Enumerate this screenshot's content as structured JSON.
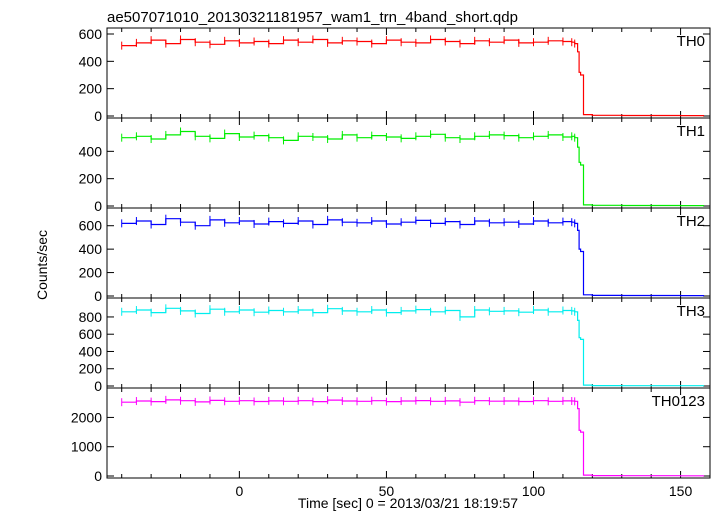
{
  "chart_data": {
    "type": "line",
    "title": "ae507071010_20130321181957_wam1_trn_4band_short.qdp",
    "xlabel": "Time [sec] 0 = 2013/03/21 18:19:57",
    "ylabel": "Counts/sec",
    "xlim": [
      -45,
      160
    ],
    "xticks": [
      0,
      50,
      100,
      150
    ],
    "panels": [
      {
        "name": "TH0",
        "color": "#ff0000",
        "ylim": [
          0,
          600
        ],
        "yticks": [
          0,
          200,
          400,
          600
        ],
        "x": [
          -40,
          -35,
          -30,
          -25,
          -20,
          -15,
          -10,
          -5,
          0,
          5,
          10,
          15,
          20,
          25,
          30,
          35,
          40,
          45,
          50,
          55,
          60,
          65,
          70,
          75,
          80,
          85,
          90,
          95,
          100,
          105,
          110,
          113,
          114,
          115,
          115.5,
          116,
          117,
          120,
          130,
          140,
          150,
          158
        ],
        "values": [
          515,
          535,
          555,
          530,
          560,
          540,
          525,
          550,
          535,
          545,
          530,
          555,
          540,
          560,
          535,
          550,
          545,
          530,
          555,
          540,
          535,
          560,
          545,
          530,
          550,
          540,
          555,
          535,
          540,
          550,
          545,
          540,
          530,
          470,
          320,
          300,
          10,
          5,
          4,
          4,
          3,
          3
        ]
      },
      {
        "name": "TH1",
        "color": "#00ee00",
        "ylim": [
          0,
          600
        ],
        "yticks": [
          0,
          200,
          400
        ],
        "x": [
          -40,
          -35,
          -30,
          -25,
          -20,
          -15,
          -10,
          -5,
          0,
          5,
          10,
          15,
          20,
          25,
          30,
          35,
          40,
          45,
          50,
          55,
          60,
          65,
          70,
          75,
          80,
          85,
          90,
          95,
          100,
          105,
          110,
          113,
          114,
          115,
          115.5,
          116,
          117,
          120,
          130,
          140,
          150,
          158
        ],
        "values": [
          500,
          510,
          490,
          520,
          545,
          510,
          495,
          530,
          505,
          515,
          500,
          480,
          510,
          505,
          490,
          520,
          500,
          515,
          505,
          495,
          510,
          525,
          500,
          490,
          510,
          520,
          515,
          500,
          510,
          520,
          505,
          510,
          500,
          430,
          320,
          300,
          8,
          5,
          4,
          4,
          3,
          3
        ]
      },
      {
        "name": "TH2",
        "color": "#0000ff",
        "ylim": [
          0,
          700
        ],
        "yticks": [
          0,
          200,
          400,
          600
        ],
        "x": [
          -40,
          -35,
          -30,
          -25,
          -20,
          -15,
          -10,
          -5,
          0,
          5,
          10,
          15,
          20,
          25,
          30,
          35,
          40,
          45,
          50,
          55,
          60,
          65,
          70,
          75,
          80,
          85,
          90,
          95,
          100,
          105,
          110,
          113,
          114,
          115,
          115.5,
          116,
          117,
          120,
          130,
          140,
          150,
          158
        ],
        "values": [
          620,
          640,
          610,
          660,
          630,
          600,
          650,
          625,
          640,
          615,
          635,
          620,
          640,
          610,
          650,
          630,
          625,
          640,
          615,
          630,
          645,
          620,
          635,
          610,
          640,
          625,
          630,
          615,
          640,
          625,
          635,
          630,
          620,
          560,
          400,
          380,
          10,
          5,
          4,
          4,
          3,
          3
        ]
      },
      {
        "name": "TH3",
        "color": "#00eeee",
        "ylim": [
          0,
          950
        ],
        "yticks": [
          0,
          200,
          400,
          600,
          800
        ],
        "x": [
          -40,
          -35,
          -30,
          -25,
          -20,
          -15,
          -10,
          -5,
          0,
          5,
          10,
          15,
          20,
          25,
          30,
          35,
          40,
          45,
          50,
          55,
          60,
          65,
          70,
          75,
          80,
          85,
          90,
          95,
          100,
          105,
          110,
          113,
          114,
          115,
          115.5,
          116,
          117,
          120,
          130,
          140,
          150,
          158
        ],
        "values": [
          860,
          880,
          850,
          900,
          870,
          840,
          890,
          860,
          880,
          855,
          875,
          860,
          880,
          850,
          895,
          870,
          860,
          880,
          850,
          870,
          885,
          860,
          875,
          800,
          880,
          865,
          870,
          855,
          880,
          860,
          875,
          870,
          860,
          760,
          560,
          540,
          10,
          5,
          4,
          4,
          3,
          3
        ]
      },
      {
        "name": "TH0123",
        "color": "#ff00ff",
        "ylim": [
          0,
          2800
        ],
        "yticks": [
          0,
          1000,
          2000
        ],
        "x": [
          -40,
          -35,
          -30,
          -25,
          -20,
          -15,
          -10,
          -5,
          0,
          5,
          10,
          15,
          20,
          25,
          30,
          35,
          40,
          45,
          50,
          55,
          60,
          65,
          70,
          75,
          80,
          85,
          90,
          95,
          100,
          105,
          110,
          113,
          114,
          115,
          115.5,
          116,
          117,
          120,
          130,
          140,
          150,
          158
        ],
        "values": [
          2520,
          2560,
          2540,
          2600,
          2570,
          2530,
          2580,
          2550,
          2570,
          2545,
          2565,
          2550,
          2570,
          2540,
          2590,
          2560,
          2550,
          2570,
          2540,
          2560,
          2575,
          2550,
          2565,
          2520,
          2570,
          2555,
          2560,
          2545,
          2570,
          2550,
          2565,
          2560,
          2550,
          2300,
          1560,
          1500,
          30,
          12,
          10,
          9,
          8,
          8
        ]
      }
    ]
  }
}
